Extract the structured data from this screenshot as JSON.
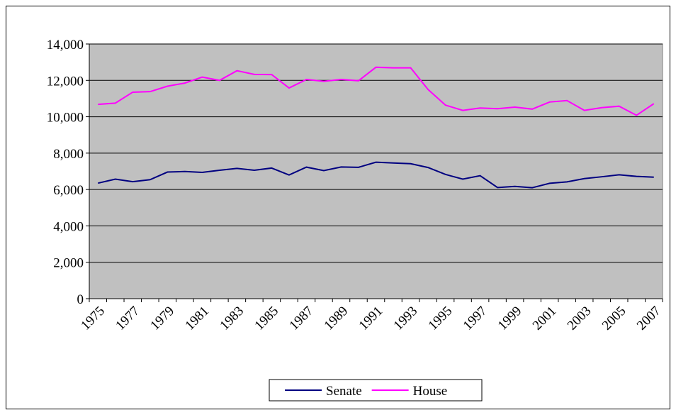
{
  "chart_data": {
    "type": "line",
    "categories": [
      "1975",
      null,
      "1977",
      null,
      "1979",
      null,
      "1981",
      null,
      "1983",
      null,
      "1985",
      null,
      "1987",
      null,
      "1989",
      null,
      "1991",
      null,
      "1993",
      null,
      "1995",
      null,
      "1997",
      null,
      "1999",
      null,
      "2001",
      null,
      "2003",
      null,
      "2005",
      null,
      "2007"
    ],
    "series": [
      {
        "name": "Senate",
        "color": "#000080",
        "values": [
          6350,
          6570,
          6430,
          6540,
          6960,
          6990,
          6940,
          7060,
          7160,
          7060,
          7180,
          6800,
          7230,
          7040,
          7240,
          7220,
          7500,
          7460,
          7420,
          7210,
          6830,
          6570,
          6760,
          6110,
          6170,
          6100,
          6340,
          6420,
          6600,
          6700,
          6810,
          6720,
          6680
        ]
      },
      {
        "name": "House",
        "color": "#ff00ff",
        "values": [
          10680,
          10750,
          11350,
          11380,
          11680,
          11850,
          12180,
          12000,
          12530,
          12330,
          12320,
          11580,
          12050,
          11950,
          12050,
          11980,
          12720,
          12690,
          12690,
          11500,
          10640,
          10350,
          10480,
          10440,
          10530,
          10420,
          10810,
          10890,
          10350,
          10500,
          10580,
          10080,
          10720
        ]
      }
    ],
    "ylim": [
      0,
      14000
    ],
    "yticks": [
      0,
      {
        "value": 2000,
        "label": "2,000"
      },
      {
        "value": 4000,
        "label": "4,000"
      },
      {
        "value": 6000,
        "label": "6,000"
      },
      {
        "value": 8000,
        "label": "8,000"
      },
      {
        "value": 10000,
        "label": "10,000"
      },
      {
        "value": 12000,
        "label": "12,000"
      },
      {
        "value": 14000,
        "label": "14,000"
      }
    ],
    "grid": true,
    "plot_background": "#c0c0c0",
    "legend": "bottom"
  }
}
